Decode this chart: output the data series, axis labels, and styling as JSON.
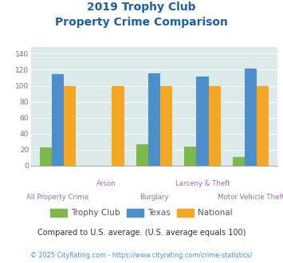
{
  "title_line1": "2019 Trophy Club",
  "title_line2": "Property Crime Comparison",
  "categories": [
    "All Property Crime",
    "Arson",
    "Burglary",
    "Larceny & Theft",
    "Motor Vehicle Theft"
  ],
  "trophy_club": [
    23,
    0,
    27,
    24,
    11
  ],
  "texas": [
    115,
    0,
    116,
    112,
    121
  ],
  "national": [
    100,
    100,
    100,
    100,
    100
  ],
  "trophy_club_color": "#7db84a",
  "texas_color": "#4d8fcc",
  "national_color": "#f5a623",
  "bg_color": "#dce9e9",
  "title_color": "#1a5fa8",
  "xlabel_color": "#9b6fa6",
  "ytick_color": "#777777",
  "ylabel_values": [
    0,
    20,
    40,
    60,
    80,
    100,
    120,
    140
  ],
  "ylim": [
    0,
    148
  ],
  "footnote": "Compared to U.S. average. (U.S. average equals 100)",
  "footnote2": "© 2025 CityRating.com - https://www.cityrating.com/crime-statistics/",
  "footnote_color": "#333333",
  "footnote2_color": "#4d8fcc",
  "legend_text_color": "#555555"
}
